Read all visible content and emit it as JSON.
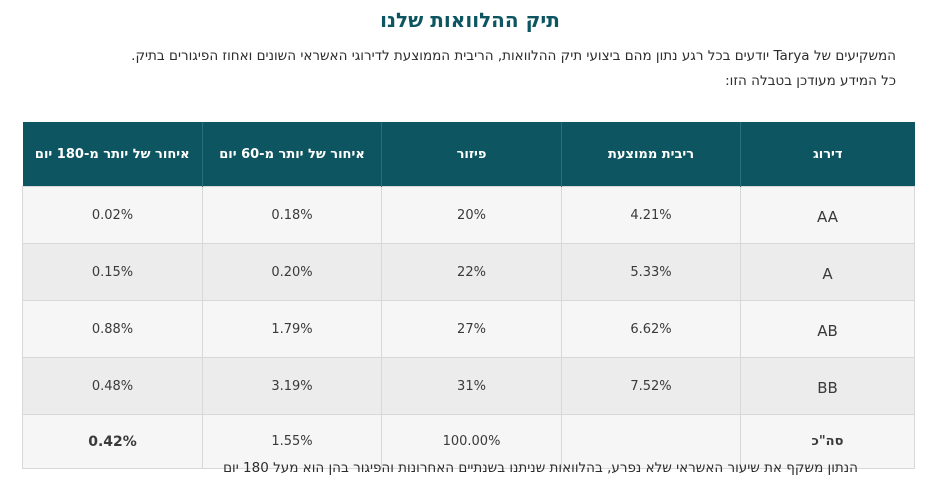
{
  "title": "תיק ההלוואות שלנו",
  "intro": {
    "line1": "המשקיעים של Tarya יודעים בכל רגע נתון מהם ביצועי תיק ההלוואות, הריבית הממוצעת לדירוגי האשראי השונים ואחוז הפיגורים בתיק.",
    "line2": "כל המידע מעודכן בטבלה הזו:"
  },
  "table": {
    "headers": {
      "grade": "דירוג",
      "avg_interest": "ריבית ממוצעת",
      "diversification": "פיזור",
      "late60": "איחור של יותר מ-60 יום",
      "late180": "איחור של יותר מ-180 יום"
    },
    "rows": [
      {
        "grade": "AA",
        "avg_interest": "4.21%",
        "diversification": "20%",
        "late60": "0.18%",
        "late180": "0.02%"
      },
      {
        "grade": "A",
        "avg_interest": "5.33%",
        "diversification": "22%",
        "late60": "0.20%",
        "late180": "0.15%"
      },
      {
        "grade": "AB",
        "avg_interest": "6.62%",
        "diversification": "27%",
        "late60": "1.79%",
        "late180": "0.88%"
      },
      {
        "grade": "BB",
        "avg_interest": "7.52%",
        "diversification": "31%",
        "late60": "3.19%",
        "late180": "0.48%"
      }
    ],
    "total": {
      "grade": "סה\"כ",
      "avg_interest": "",
      "diversification": "100.00%",
      "late60": "1.55%",
      "late180": "0.42%"
    }
  },
  "footnote": "הנתון משקף את שיעור האשראי שלא נפרע, בהלוואות שניתנו בשנתיים האחרונות והפיגור בהן הוא מעל 180 יום"
}
